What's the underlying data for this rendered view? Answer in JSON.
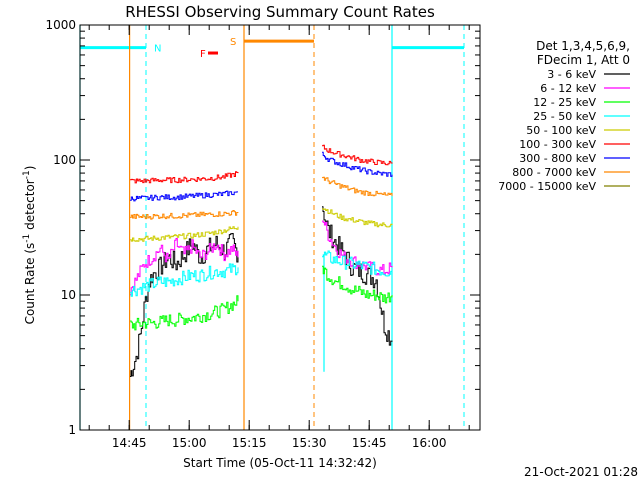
{
  "chart_data": {
    "type": "line",
    "title": "RHESSI Observing Summary Count Rates",
    "xlabel": "Start Time (05-Oct-11 14:32:42)",
    "ylabel_pre": "Count Rate (s",
    "ylabel_sup1": "-1",
    "ylabel_mid": " detector",
    "ylabel_sup2": "-1",
    "ylabel_post": ")",
    "x_unit": "minutes since 14:32:42",
    "xlim": [
      0,
      100
    ],
    "ylim": [
      1,
      1000
    ],
    "y_scale": "log",
    "x_ticks": [
      {
        "v": 12.3,
        "label": "14:45"
      },
      {
        "v": 27.3,
        "label": "15:00"
      },
      {
        "v": 42.3,
        "label": "15:15"
      },
      {
        "v": 57.3,
        "label": "15:30"
      },
      {
        "v": 72.3,
        "label": "15:45"
      },
      {
        "v": 87.3,
        "label": "16:00"
      }
    ],
    "y_ticks": [
      {
        "v": 1,
        "label": "1"
      },
      {
        "v": 10,
        "label": "10"
      },
      {
        "v": 100,
        "label": "100"
      },
      {
        "v": 1000,
        "label": "1000"
      }
    ],
    "legend_header": [
      "Det 1,3,4,5,6,9,",
      "FDecim 1, Att 0"
    ],
    "series": [
      {
        "name": "3 - 6 keV",
        "color": "#000000",
        "segments": [
          {
            "x": [
              12.5,
              13,
              14,
              15,
              16,
              17,
              18,
              20,
              22,
              24,
              26,
              28,
              30,
              32,
              34,
              36,
              38,
              39.5
            ],
            "y": [
              2.5,
              2.9,
              3.5,
              5,
              8,
              12,
              14,
              16,
              19,
              17,
              20,
              24,
              19,
              22,
              24,
              21,
              25,
              20
            ]
          },
          {
            "x": [
              60.5,
              61,
              62,
              64,
              66,
              68,
              70,
              72,
              74,
              76,
              78
            ],
            "y": [
              48,
              40,
              30,
              24,
              20,
              16,
              15,
              14,
              13,
              6,
              4.5
            ]
          }
        ]
      },
      {
        "name": "6 - 12 keV",
        "color": "#ff00ff",
        "segments": [
          {
            "x": [
              12.5,
              14,
              16,
              18,
              20,
              22,
              24,
              26,
              28,
              30,
              32,
              34,
              36,
              38,
              39.5
            ],
            "y": [
              11,
              13,
              17,
              19,
              22,
              18,
              24,
              20,
              23,
              19,
              21,
              24,
              20,
              22,
              19
            ]
          },
          {
            "x": [
              60.5,
              62,
              64,
              66,
              68,
              70,
              72,
              74,
              76,
              78
            ],
            "y": [
              38,
              28,
              22,
              19,
              18,
              17,
              16,
              15.5,
              15,
              16
            ]
          }
        ]
      },
      {
        "name": "12 - 25 keV",
        "color": "#00ff00",
        "segments": [
          {
            "x": [
              12.5,
              14,
              16,
              18,
              20,
              22,
              24,
              26,
              28,
              30,
              32,
              34,
              36,
              38,
              39.5
            ],
            "y": [
              6,
              6,
              6.2,
              6.2,
              6.3,
              6.5,
              6.5,
              6.7,
              6.8,
              7,
              7.2,
              7.5,
              7.8,
              8.5,
              9
            ]
          },
          {
            "x": [
              60.5,
              62,
              64,
              66,
              68,
              70,
              72,
              74,
              76,
              78
            ],
            "y": [
              16,
              14,
              12.5,
              12,
              11,
              10.5,
              10,
              10,
              9.5,
              10
            ]
          }
        ]
      },
      {
        "name": "25 - 50 keV",
        "color": "#00ffff",
        "segments": [
          {
            "x": [
              12.5,
              14,
              16,
              18,
              20,
              22,
              24,
              26,
              28,
              30,
              32,
              34,
              36,
              38,
              39.5
            ],
            "y": [
              11,
              11,
              11.5,
              12,
              12.5,
              12.5,
              13,
              13.5,
              14,
              14,
              14.5,
              15,
              15,
              15.5,
              16
            ]
          },
          {
            "x": [
              60.5,
              62,
              64,
              66,
              68,
              70,
              72,
              74,
              76,
              78
            ],
            "y": [
              20,
              19,
              18,
              17.5,
              17,
              16.5,
              16,
              15.5,
              15,
              15
            ]
          }
        ]
      },
      {
        "name": "50 - 100 keV",
        "color": "#cccc00",
        "segments": [
          {
            "x": [
              12.5,
              16,
              20,
              24,
              28,
              32,
              36,
              39.5
            ],
            "y": [
              26,
              26,
              26.5,
              27,
              27.5,
              28.5,
              30,
              32
            ]
          },
          {
            "x": [
              60.5,
              62,
              64,
              66,
              68,
              70,
              72,
              74,
              76,
              78
            ],
            "y": [
              45,
              42,
              39,
              37,
              36,
              35,
              34,
              33.5,
              33,
              33
            ]
          }
        ]
      },
      {
        "name": "100 - 300 keV",
        "color": "#ff0000",
        "segments": [
          {
            "x": [
              12.5,
              16,
              20,
              24,
              28,
              32,
              36,
              39.5
            ],
            "y": [
              70,
              70,
              71,
              71,
              72,
              73,
              75,
              80
            ]
          },
          {
            "x": [
              60.5,
              62,
              64,
              66,
              68,
              70,
              72,
              74,
              76,
              78
            ],
            "y": [
              125,
              118,
              112,
              108,
              104,
              100,
              98,
              96,
              95,
              94
            ]
          }
        ]
      },
      {
        "name": "300 - 800 keV",
        "color": "#0000ff",
        "segments": [
          {
            "x": [
              12.5,
              16,
              20,
              24,
              28,
              32,
              36,
              39.5
            ],
            "y": [
              52,
              52,
              53,
              53,
              54,
              55,
              56,
              58
            ]
          },
          {
            "x": [
              60.5,
              62,
              64,
              66,
              68,
              70,
              72,
              74,
              76,
              78
            ],
            "y": [
              110,
              102,
              96,
              92,
              88,
              85,
              82,
              80,
              79,
              78
            ]
          }
        ]
      },
      {
        "name": "800 - 7000 keV",
        "color": "#ff8800",
        "segments": [
          {
            "x": [
              12.5,
              16,
              20,
              24,
              28,
              32,
              36,
              39.5
            ],
            "y": [
              38,
              38,
              38.5,
              38.5,
              39,
              39.5,
              40,
              41
            ]
          },
          {
            "x": [
              60.5,
              62,
              64,
              66,
              68,
              70,
              72,
              74,
              76,
              78
            ],
            "y": [
              75,
              70,
              66,
              63,
              60,
              58,
              57,
              56,
              55,
              54
            ]
          }
        ]
      },
      {
        "name": "7000 - 15000 keV",
        "color": "#808000",
        "segments": []
      }
    ],
    "flags": [
      {
        "label": "N",
        "color": "#00ffff",
        "bar_y": 680,
        "bars": [
          [
            0,
            16.5
          ],
          [
            78,
            96
          ]
        ],
        "dashed": [
          16.5,
          96
        ],
        "solid": [
          0,
          78
        ],
        "label_x": 18.5
      },
      {
        "label": "S",
        "color": "#ff8800",
        "bar_y": 760,
        "bars": [
          [
            41,
            58.5
          ]
        ],
        "dashed": [
          58.5
        ],
        "solid": [
          12.4,
          41
        ],
        "label_x": 37.5
      },
      {
        "label": "F",
        "color": "#ff0000",
        "bar_y": 620,
        "bars": [
          [
            32,
            34.5
          ]
        ],
        "dashed": [],
        "solid": [],
        "label_x": 30
      }
    ],
    "attenuator_spikes": [
      {
        "x": 61,
        "color": "#00ffff",
        "ymin": 2.7
      }
    ],
    "timestamp": "21-Oct-2021 01:28",
    "grid": false,
    "legend_position": "right"
  }
}
